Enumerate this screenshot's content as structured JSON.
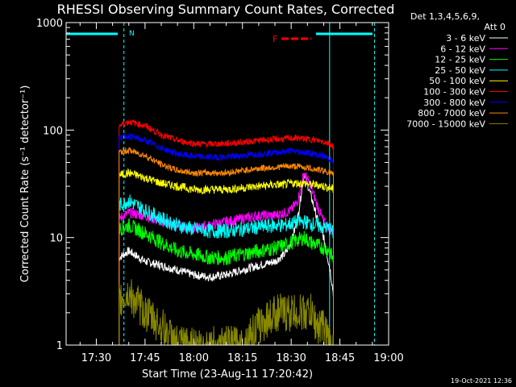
{
  "chart_data": {
    "type": "line",
    "title": "RHESSI Observing Summary Count Rates, Corrected",
    "xlabel": "Start Time (23-Aug-11 17:20:42)",
    "ylabel": "Corrected Count Rate (s⁻¹ detector⁻¹)",
    "yscale": "log",
    "ylim": [
      1,
      1000
    ],
    "xlim": [
      "17:20:42",
      "19:00:00"
    ],
    "x_ticks": [
      "17:30",
      "17:45",
      "18:00",
      "18:15",
      "18:30",
      "18:45",
      "19:00"
    ],
    "y_ticks": [
      "1",
      "10",
      "100",
      "1000"
    ],
    "detector_info": [
      "Det 1,3,4,5,6,9,",
      "Att 0"
    ],
    "flag_labels": {
      "n": "N",
      "f": "F"
    },
    "timestamp": "19-Oct-2021 12:36",
    "legend_placement": "right",
    "series": [
      {
        "name": "3 - 6 keV",
        "color": "#ffffff",
        "x": [
          "17:37",
          "17:40",
          "17:45",
          "17:50",
          "17:55",
          "18:00",
          "18:05",
          "18:10",
          "18:15",
          "18:20",
          "18:25",
          "18:28",
          "18:30",
          "18:32",
          "18:34",
          "18:36",
          "18:38",
          "18:40",
          "18:42",
          "18:43"
        ],
        "values": [
          6.5,
          7.5,
          6,
          5.5,
          5,
          4.5,
          4.3,
          4.5,
          5,
          5.5,
          6,
          7,
          9,
          15,
          40,
          25,
          15,
          10,
          5,
          3
        ]
      },
      {
        "name": "6 - 12 keV",
        "color": "#ff00ff",
        "x": [
          "17:37",
          "17:40",
          "17:45",
          "17:50",
          "17:55",
          "18:00",
          "18:05",
          "18:10",
          "18:15",
          "18:20",
          "18:25",
          "18:28",
          "18:30",
          "18:32",
          "18:34",
          "18:36",
          "18:38",
          "18:40",
          "18:42",
          "18:43"
        ],
        "values": [
          15,
          17,
          16,
          14,
          13,
          12,
          13,
          14,
          15,
          16,
          16,
          17,
          18,
          22,
          40,
          30,
          20,
          14,
          12,
          11
        ]
      },
      {
        "name": "12 - 25 keV",
        "color": "#00ff00",
        "x": [
          "17:37",
          "17:40",
          "17:45",
          "17:50",
          "17:55",
          "18:00",
          "18:05",
          "18:10",
          "18:15",
          "18:20",
          "18:25",
          "18:28",
          "18:30",
          "18:32",
          "18:34",
          "18:36",
          "18:38",
          "18:40",
          "18:42",
          "18:43"
        ],
        "values": [
          12,
          13,
          11,
          9,
          7.5,
          7,
          6.5,
          6.5,
          7,
          7.5,
          8,
          8.5,
          9,
          9.5,
          10,
          9,
          8.5,
          8,
          7.5,
          6
        ]
      },
      {
        "name": "25 - 50 keV",
        "color": "#00ffff",
        "x": [
          "17:37",
          "17:40",
          "17:45",
          "17:50",
          "17:55",
          "18:00",
          "18:05",
          "18:10",
          "18:15",
          "18:20",
          "18:25",
          "18:28",
          "18:30",
          "18:32",
          "18:34",
          "18:36",
          "18:38",
          "18:40",
          "18:42",
          "18:43"
        ],
        "values": [
          20,
          22,
          18,
          15,
          13,
          12,
          11.5,
          11.5,
          12,
          12.5,
          13,
          13,
          13.5,
          14,
          14,
          13.5,
          13,
          12.5,
          12,
          11
        ]
      },
      {
        "name": "50 - 100 keV",
        "color": "#ffff00",
        "x": [
          "17:37",
          "17:40",
          "17:45",
          "17:50",
          "17:55",
          "18:00",
          "18:05",
          "18:10",
          "18:15",
          "18:20",
          "18:25",
          "18:28",
          "18:30",
          "18:32",
          "18:34",
          "18:36",
          "18:38",
          "18:40",
          "18:42",
          "18:43"
        ],
        "values": [
          38,
          40,
          36,
          32,
          30,
          28,
          28,
          28,
          29,
          30,
          31,
          31,
          32,
          32,
          32,
          31,
          31,
          30,
          29,
          28
        ]
      },
      {
        "name": "100 - 300 keV",
        "color": "#ff0000",
        "x": [
          "17:37",
          "17:40",
          "17:45",
          "17:50",
          "17:55",
          "18:00",
          "18:05",
          "18:10",
          "18:15",
          "18:20",
          "18:25",
          "18:28",
          "18:30",
          "18:32",
          "18:34",
          "18:36",
          "18:38",
          "18:40",
          "18:42",
          "18:43"
        ],
        "values": [
          110,
          120,
          110,
          90,
          80,
          75,
          74,
          75,
          77,
          80,
          82,
          83,
          84,
          84,
          83,
          82,
          80,
          78,
          75,
          70
        ]
      },
      {
        "name": "300 - 800 keV",
        "color": "#0000ff",
        "x": [
          "17:37",
          "17:40",
          "17:45",
          "17:50",
          "17:55",
          "18:00",
          "18:05",
          "18:10",
          "18:15",
          "18:20",
          "18:25",
          "18:28",
          "18:30",
          "18:32",
          "18:34",
          "18:36",
          "18:38",
          "18:40",
          "18:42",
          "18:43"
        ],
        "values": [
          85,
          88,
          80,
          68,
          60,
          57,
          56,
          56,
          58,
          60,
          62,
          63,
          64,
          63,
          62,
          61,
          59,
          57,
          54,
          50
        ]
      },
      {
        "name": "800 - 7000 keV",
        "color": "#ff8800",
        "x": [
          "17:37",
          "17:40",
          "17:45",
          "17:50",
          "17:55",
          "18:00",
          "18:05",
          "18:10",
          "18:15",
          "18:20",
          "18:25",
          "18:28",
          "18:30",
          "18:32",
          "18:34",
          "18:36",
          "18:38",
          "18:40",
          "18:42",
          "18:43"
        ],
        "values": [
          62,
          65,
          58,
          48,
          42,
          40,
          40,
          40,
          42,
          44,
          45,
          46,
          46,
          46,
          45,
          44,
          43,
          42,
          40,
          38
        ]
      },
      {
        "name": "7000 - 15000 keV",
        "color": "#888800",
        "x": [
          "17:37",
          "17:40",
          "17:45",
          "17:50",
          "17:55",
          "18:00",
          "18:05",
          "18:10",
          "18:15",
          "18:20",
          "18:25",
          "18:28",
          "18:30",
          "18:32",
          "18:34",
          "18:36",
          "18:38",
          "18:40",
          "18:42",
          "18:43"
        ],
        "values": [
          2.5,
          3,
          2,
          1.5,
          1,
          1,
          1,
          1,
          1,
          1.5,
          2,
          2,
          2,
          2,
          2,
          2,
          1.5,
          1.5,
          1,
          1
        ]
      }
    ]
  }
}
